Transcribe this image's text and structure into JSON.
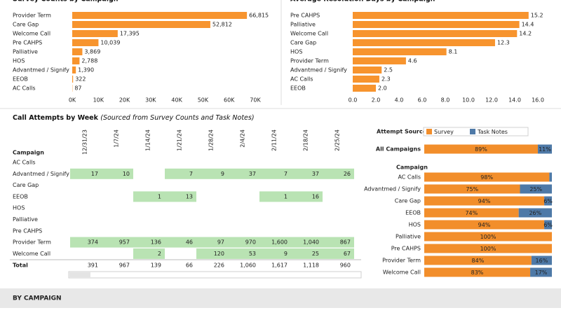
{
  "chart_data": [
    {
      "type": "bar",
      "orientation": "horizontal",
      "title": "Survey Counts by Campaign",
      "categories": [
        "Provider Term",
        "Care Gap",
        "Welcome Call",
        "Pre CAHPS",
        "Palliative",
        "HOS",
        "Advantmed / Signify",
        "EEOB",
        "AC Calls"
      ],
      "values": [
        66815,
        52812,
        17395,
        10039,
        3869,
        2788,
        1390,
        322,
        87
      ],
      "value_labels": [
        "66,815",
        "52,812",
        "17,395",
        "10,039",
        "3,869",
        "2,788",
        "1,390",
        "322",
        "87"
      ],
      "color": "#f7942e",
      "xlim": [
        0,
        70000
      ],
      "xticks": [
        {
          "value": 0,
          "label": "0K"
        },
        {
          "value": 10000,
          "label": "10K"
        },
        {
          "value": 20000,
          "label": "20K"
        },
        {
          "value": 30000,
          "label": "30K"
        },
        {
          "value": 40000,
          "label": "40K"
        },
        {
          "value": 50000,
          "label": "50K"
        },
        {
          "value": 60000,
          "label": "60K"
        },
        {
          "value": 70000,
          "label": "70K"
        }
      ]
    },
    {
      "type": "bar",
      "orientation": "horizontal",
      "title": "Average Resolution Days by Campaign",
      "categories": [
        "Pre CAHPS",
        "Palliative",
        "Welcome Call",
        "Care Gap",
        "HOS",
        "Provider Term",
        "Advantmed / Signify",
        "AC Calls",
        "EEOB"
      ],
      "values": [
        15.2,
        14.4,
        14.2,
        12.3,
        8.1,
        4.6,
        2.5,
        2.3,
        2.0
      ],
      "value_labels": [
        "15.2",
        "14.4",
        "14.2",
        "12.3",
        "8.1",
        "4.6",
        "2.5",
        "2.3",
        "2.0"
      ],
      "color": "#f7942e",
      "xlim": [
        0,
        16
      ],
      "xticks": [
        {
          "value": 0,
          "label": "0.0"
        },
        {
          "value": 2,
          "label": "2.0"
        },
        {
          "value": 4,
          "label": "4.0"
        },
        {
          "value": 6,
          "label": "6.0"
        },
        {
          "value": 8,
          "label": "8.0"
        },
        {
          "value": 10,
          "label": "10.0"
        },
        {
          "value": 12,
          "label": "12.0"
        },
        {
          "value": 14,
          "label": "14.0"
        },
        {
          "value": 16,
          "label": "16.0"
        }
      ]
    },
    {
      "type": "stacked_bar",
      "orientation": "horizontal",
      "legend_title": "Attempt Source:",
      "category_title": "Campaign",
      "categories": [
        "All Campaigns",
        "AC Calls",
        "Advantmed / Signify",
        "Care Gap",
        "EEOB",
        "HOS",
        "Palliative",
        "Pre CAHPS",
        "Provider Term",
        "Welcome Call"
      ],
      "xlim": [
        0,
        100
      ],
      "series": [
        {
          "name": "Survey",
          "color": "#f28e2b",
          "values": [
            89,
            98,
            75,
            94,
            74,
            94,
            100,
            100,
            84,
            83
          ],
          "value_labels": [
            "89%",
            "98%",
            "75%",
            "94%",
            "74%",
            "94%",
            "100%",
            "100%",
            "84%",
            "83%"
          ]
        },
        {
          "name": "Task Notes",
          "color": "#4e79a7",
          "values": [
            11,
            2,
            25,
            6,
            26,
            6,
            0,
            0,
            16,
            17
          ],
          "value_labels": [
            "11%",
            null,
            "25%",
            "6%",
            "26%",
            "6%",
            null,
            null,
            "16%",
            "17%"
          ]
        }
      ]
    }
  ],
  "table": {
    "title": "Call Attempts by Week",
    "subtitle": "(Sourced from Survey Counts and Task Notes)",
    "row_header": "Campaign",
    "columns": [
      "12/31/23",
      "1/7/24",
      "1/14/24",
      "1/21/24",
      "1/28/24",
      "2/4/24",
      "2/11/24",
      "2/18/24",
      "2/25/24"
    ],
    "rows": [
      {
        "label": "AC Calls",
        "cells": [
          null,
          null,
          null,
          null,
          null,
          null,
          null,
          null,
          null
        ]
      },
      {
        "label": "Advantmed / Signify",
        "cells": [
          "17",
          "10",
          null,
          "7",
          "9",
          "37",
          "7",
          "37",
          "26"
        ]
      },
      {
        "label": "Care Gap",
        "cells": [
          null,
          null,
          null,
          null,
          null,
          null,
          null,
          null,
          null
        ]
      },
      {
        "label": "EEOB",
        "cells": [
          null,
          null,
          "1",
          "13",
          null,
          null,
          "1",
          "16",
          null
        ]
      },
      {
        "label": "HOS",
        "cells": [
          null,
          null,
          null,
          null,
          null,
          null,
          null,
          null,
          null
        ]
      },
      {
        "label": "Palliative",
        "cells": [
          null,
          null,
          null,
          null,
          null,
          null,
          null,
          null,
          null
        ]
      },
      {
        "label": "Pre CAHPS",
        "cells": [
          null,
          null,
          null,
          null,
          null,
          null,
          null,
          null,
          null
        ]
      },
      {
        "label": "Provider Term",
        "cells": [
          "374",
          "957",
          "136",
          "46",
          "97",
          "970",
          "1,600",
          "1,040",
          "867"
        ]
      },
      {
        "label": "Welcome Call",
        "cells": [
          null,
          null,
          "2",
          null,
          "120",
          "53",
          "9",
          "25",
          "67"
        ]
      }
    ],
    "total": {
      "label": "Total",
      "cells": [
        "391",
        "967",
        "139",
        "66",
        "226",
        "1,060",
        "1,617",
        "1,118",
        "960"
      ]
    }
  },
  "section": {
    "title": "BY CAMPAIGN"
  }
}
